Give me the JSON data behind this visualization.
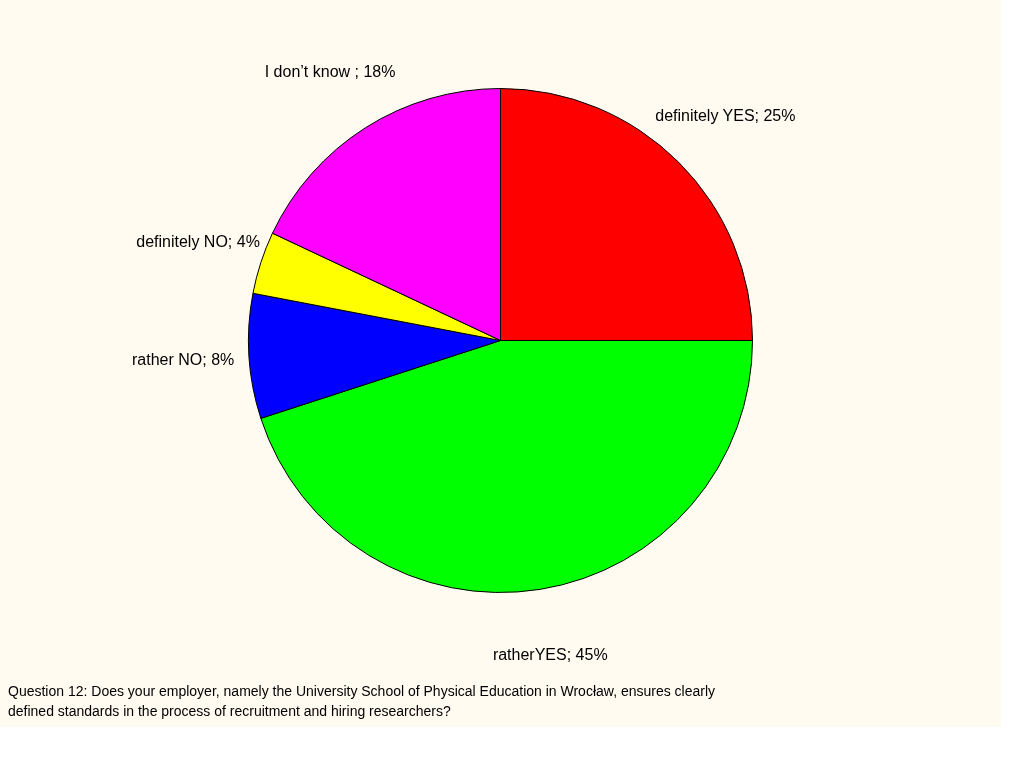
{
  "chart_data": {
    "type": "pie",
    "categories": [
      "definitely YES",
      "ratherYES",
      "rather NO",
      "definitely NO",
      "I don’t know"
    ],
    "values": [
      25,
      45,
      8,
      4,
      18
    ],
    "colors": [
      "#ff0000",
      "#00ff00",
      "#0000ff",
      "#ffff00",
      "#ff00ff"
    ],
    "value_labels": [
      "; 25%",
      "; 45%",
      "; 8%",
      "; 4%",
      " ; 18%"
    ],
    "annotations": [
      "Question 12: Does your employer, namely the University School of Physical Education in Wrocław, ensures clearly defined standards in the process of recruitment and hiring researchers?"
    ],
    "legend": false
  }
}
